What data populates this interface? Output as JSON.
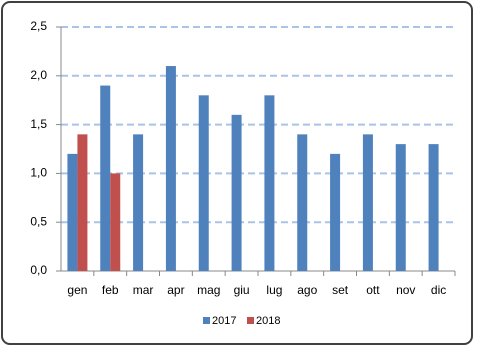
{
  "chart_data": {
    "type": "bar",
    "categories": [
      "gen",
      "feb",
      "mar",
      "apr",
      "mag",
      "giu",
      "lug",
      "ago",
      "set",
      "ott",
      "nov",
      "dic"
    ],
    "series": [
      {
        "name": "2017",
        "color": "#4f81bd",
        "values": [
          1.2,
          1.9,
          1.4,
          2.1,
          1.8,
          1.6,
          1.8,
          1.4,
          1.2,
          1.4,
          1.3,
          1.3
        ]
      },
      {
        "name": "2018",
        "color": "#c0504d",
        "values": [
          1.4,
          1.0,
          null,
          null,
          null,
          null,
          null,
          null,
          null,
          null,
          null,
          null
        ]
      }
    ],
    "ylim": [
      0,
      2.5
    ],
    "yticks": [
      {
        "value": 0,
        "label": "0,0"
      },
      {
        "value": 0.5,
        "label": "0,5"
      },
      {
        "value": 1,
        "label": "1,0"
      },
      {
        "value": 1.5,
        "label": "1,5"
      },
      {
        "value": 2,
        "label": "2,0"
      },
      {
        "value": 2.5,
        "label": "2,5"
      }
    ],
    "grid": true,
    "legend": "bottom"
  }
}
